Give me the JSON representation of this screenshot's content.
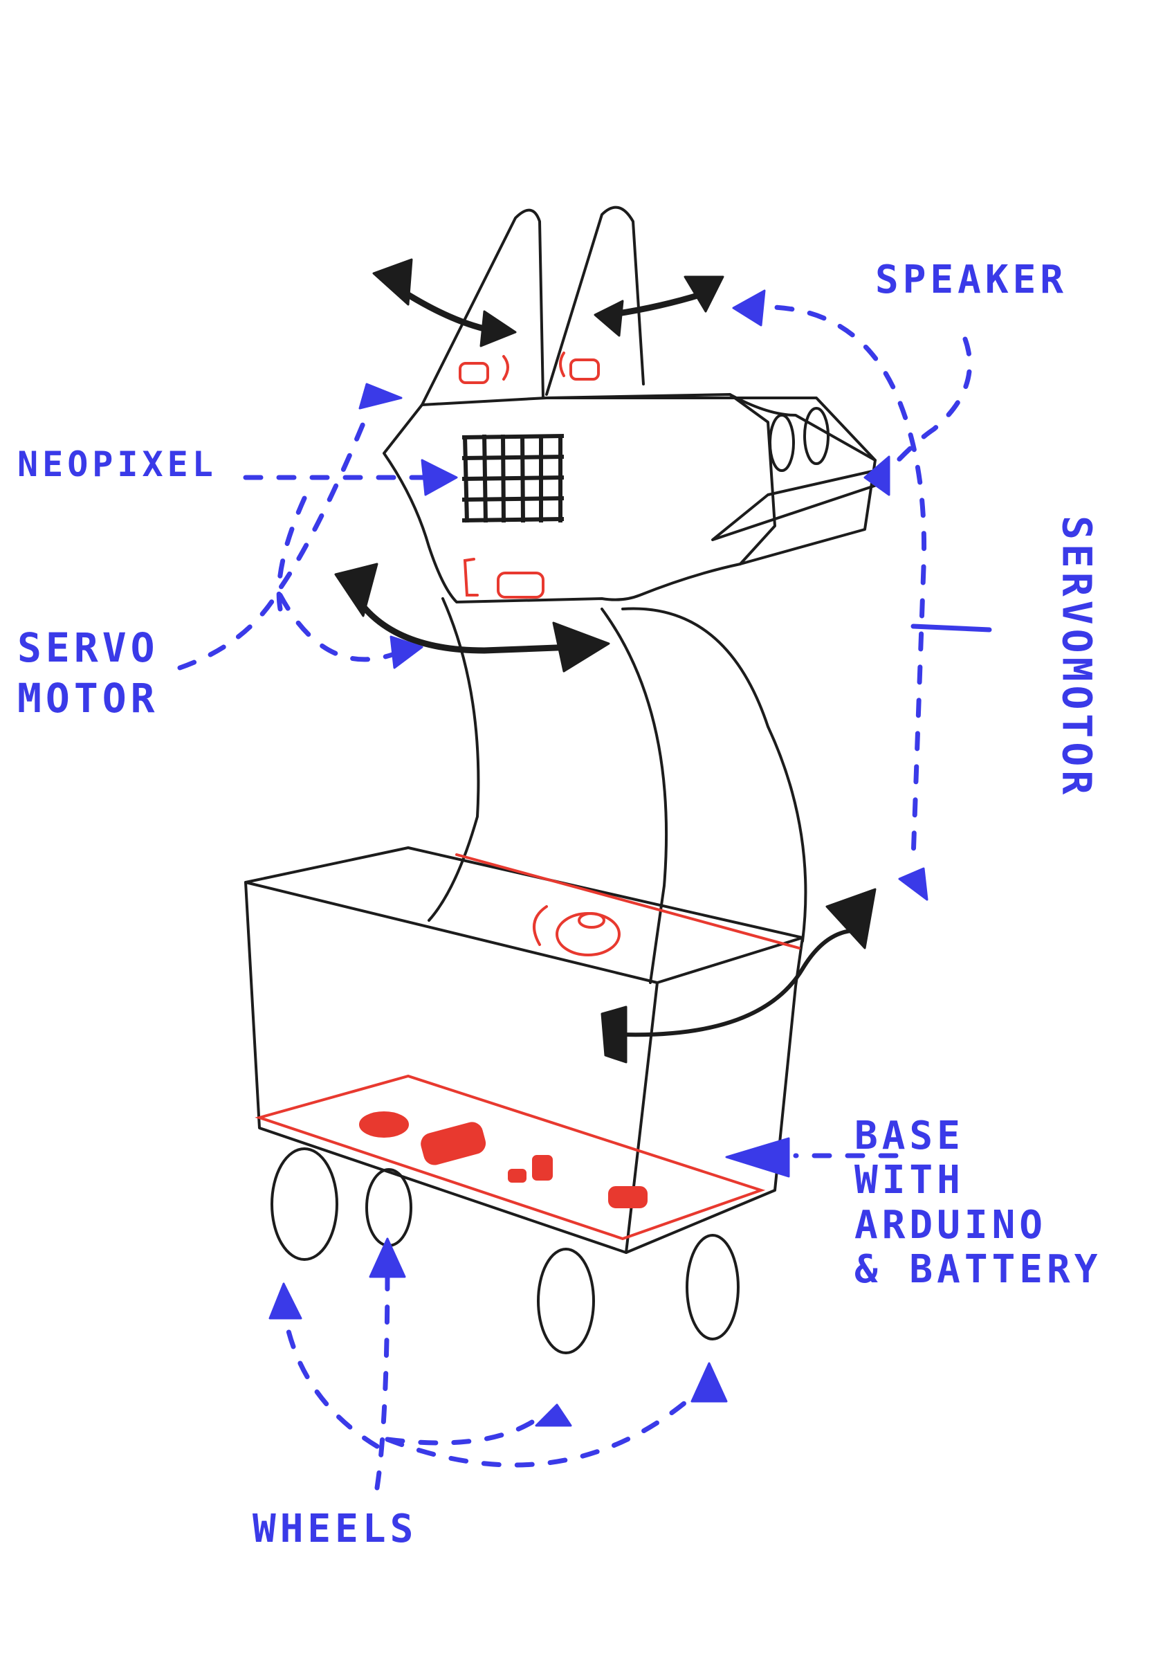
{
  "labels": {
    "speaker": "SPEAKER",
    "neopixel": "NEOPIXEL",
    "servo_motor_left": "SERVO\nMOTOR",
    "servomotor_right": "SERVOMOTOR",
    "base": "BASE\nWITH\nARDUINO\n& BATTERY",
    "wheels": "WHEELS"
  },
  "colors": {
    "annotation_blue": "#3a3ae8",
    "component_red": "#e8392f",
    "outline_black": "#1c1c1c"
  }
}
